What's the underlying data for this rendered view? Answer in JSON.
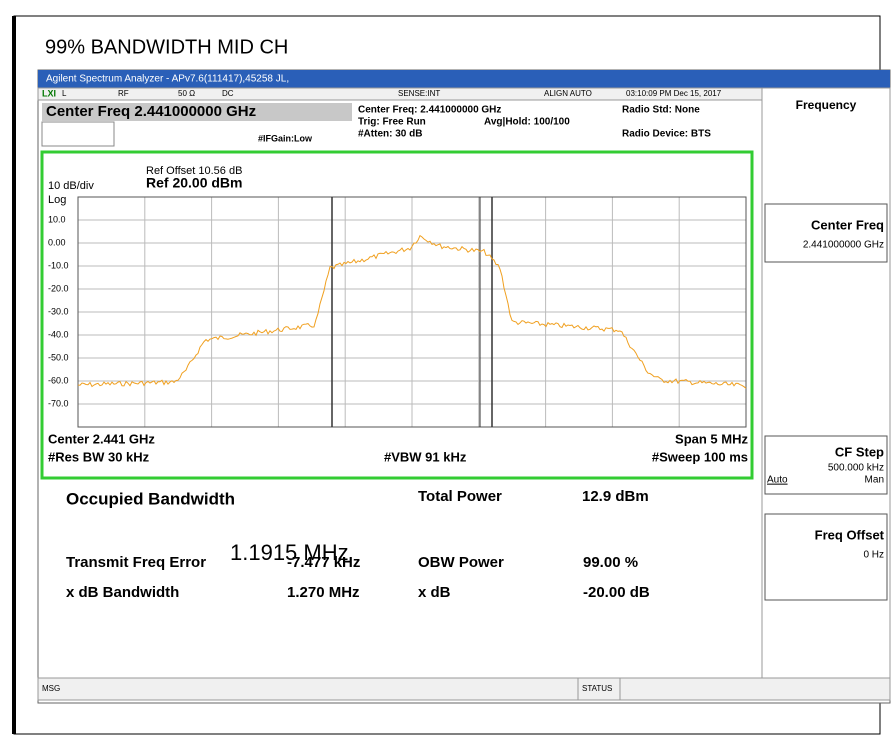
{
  "heading": "99% BANDWIDTH MID CH",
  "window": {
    "title": "Agilent Spectrum Analyzer - APv7.6(111417),45258 JL,",
    "status_row": [
      "L",
      "RF",
      "50 Ω",
      "DC",
      "SENSE:INT",
      "ALIGN AUTO",
      "03:10:09 PM Dec 15, 2017"
    ],
    "center_freq_box": "Center Freq 2.441000000 GHz",
    "settings": {
      "center": "Center Freq: 2.441000000 GHz",
      "trig": "Trig: Free Run",
      "atten": "#Atten: 30 dB",
      "avg": "Avg|Hold: 100/100",
      "ifgain": "#IFGain:Low",
      "radio_std": "Radio Std: None",
      "radio_device": "Radio Device: BTS"
    },
    "graph": {
      "ref_offset": "Ref Offset 10.56 dB",
      "scale": "10 dB/div",
      "ref": "Ref 20.00 dBm",
      "log": "Log",
      "y_labels": [
        "10.0",
        "0.00",
        "-10.0",
        "-20.0",
        "-30.0",
        "-40.0",
        "-50.0",
        "-60.0",
        "-70.0"
      ],
      "center": "Center 2.441 GHz",
      "res_bw": "#Res BW 30 kHz",
      "vbw": "#VBW 91 kHz",
      "span": "Span 5 MHz",
      "sweep": "#Sweep 100 ms"
    },
    "results": {
      "obw_label": "Occupied Bandwidth",
      "obw_value": "1.1915 MHz",
      "total_power_label": "Total Power",
      "total_power": "12.9 dBm",
      "tfe_label": "Transmit Freq Error",
      "tfe": "-7.477 kHz",
      "obw_power_label": "OBW Power",
      "obw_power": "99.00 %",
      "xdb_bw_label": "x dB Bandwidth",
      "xdb_bw": "1.270 MHz",
      "xdb_label": "x dB",
      "xdb": "-20.00 dB"
    },
    "statusbar": {
      "msg": "MSG",
      "status": "STATUS"
    },
    "softkeys": {
      "menu": "Frequency",
      "center_freq": "Center Freq",
      "center_freq_value": "2.441000000 GHz",
      "cf_step": "CF Step",
      "cf_step_value": "500.000 kHz",
      "auto": "Auto",
      "man": "Man",
      "freq_offset": "Freq Offset",
      "freq_offset_value": "0 Hz"
    }
  }
}
